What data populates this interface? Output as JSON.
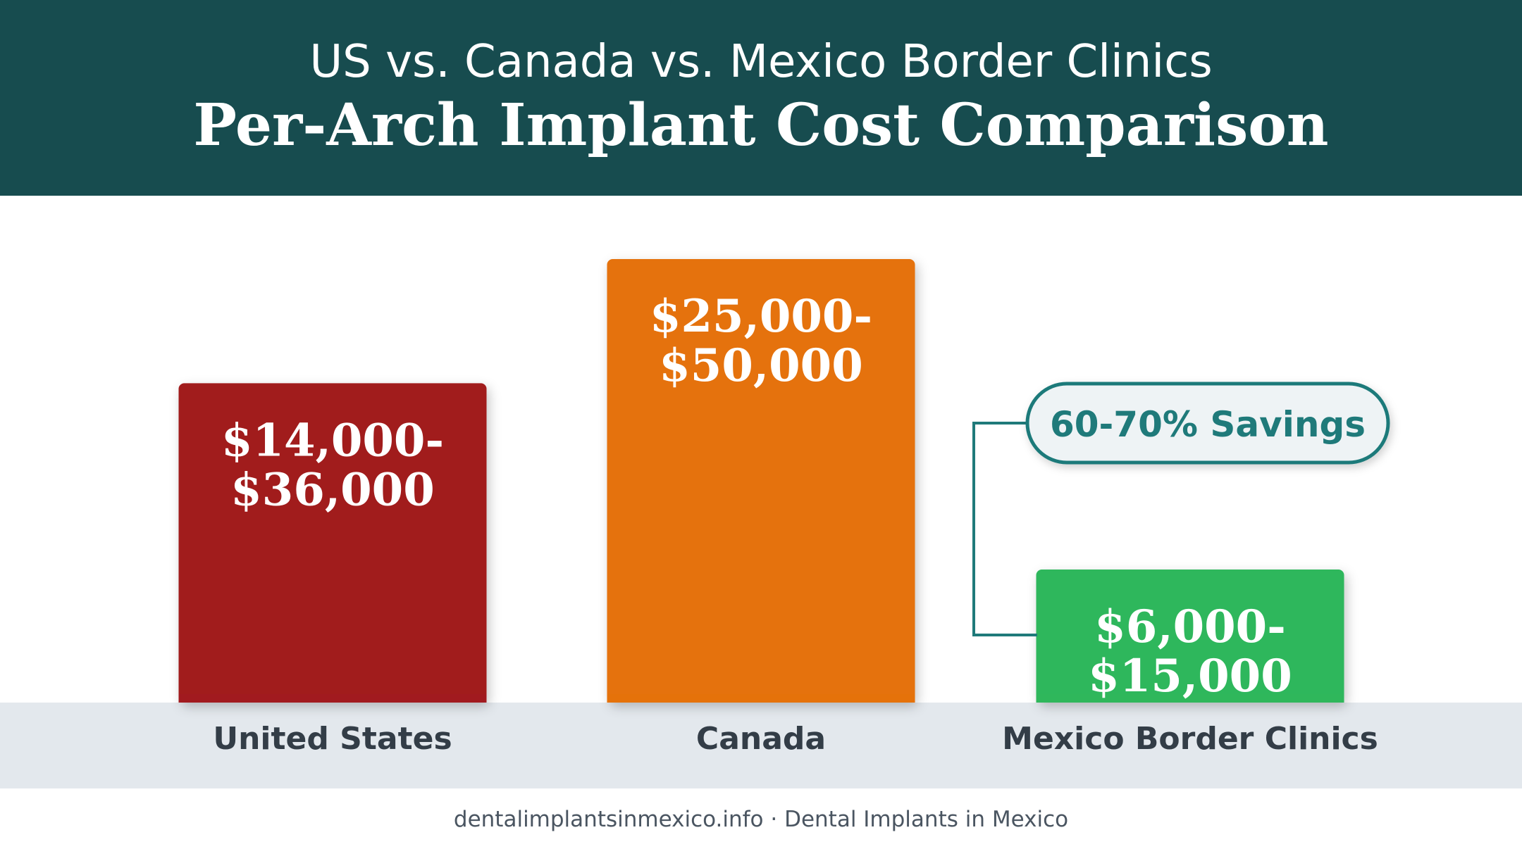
{
  "header": {
    "subtitle": "US vs. Canada vs. Mexico Border Clinics",
    "title": "Per-Arch Implant Cost Comparison"
  },
  "chart_data": {
    "type": "bar",
    "categories": [
      "United States",
      "Canada",
      "Mexico Border Clinics"
    ],
    "ranges": [
      {
        "low": 14000,
        "high": 36000,
        "line1": "$14,000-",
        "line2": "$36,000"
      },
      {
        "low": 25000,
        "high": 50000,
        "line1": "$25,000-",
        "line2": "$50,000"
      },
      {
        "low": 6000,
        "high": 15000,
        "line1": "$6,000-",
        "line2": "$15,000"
      }
    ],
    "values": [
      36000,
      50000,
      15000
    ],
    "colors": [
      "#a11a1f",
      "#e5720a",
      "#2fb75b"
    ],
    "annotation": {
      "text": "60-70% Savings",
      "target_category": "Mexico Border Clinics",
      "color": "#1f7a7a"
    },
    "title": "Per-Arch Implant Cost Comparison",
    "subtitle": "US vs. Canada vs. Mexico Border Clinics",
    "xlabel": "",
    "ylabel": "",
    "grid": false
  },
  "footer": {
    "text": "dentalimplantsinmexico.info · Dental Implants in Mexico"
  }
}
